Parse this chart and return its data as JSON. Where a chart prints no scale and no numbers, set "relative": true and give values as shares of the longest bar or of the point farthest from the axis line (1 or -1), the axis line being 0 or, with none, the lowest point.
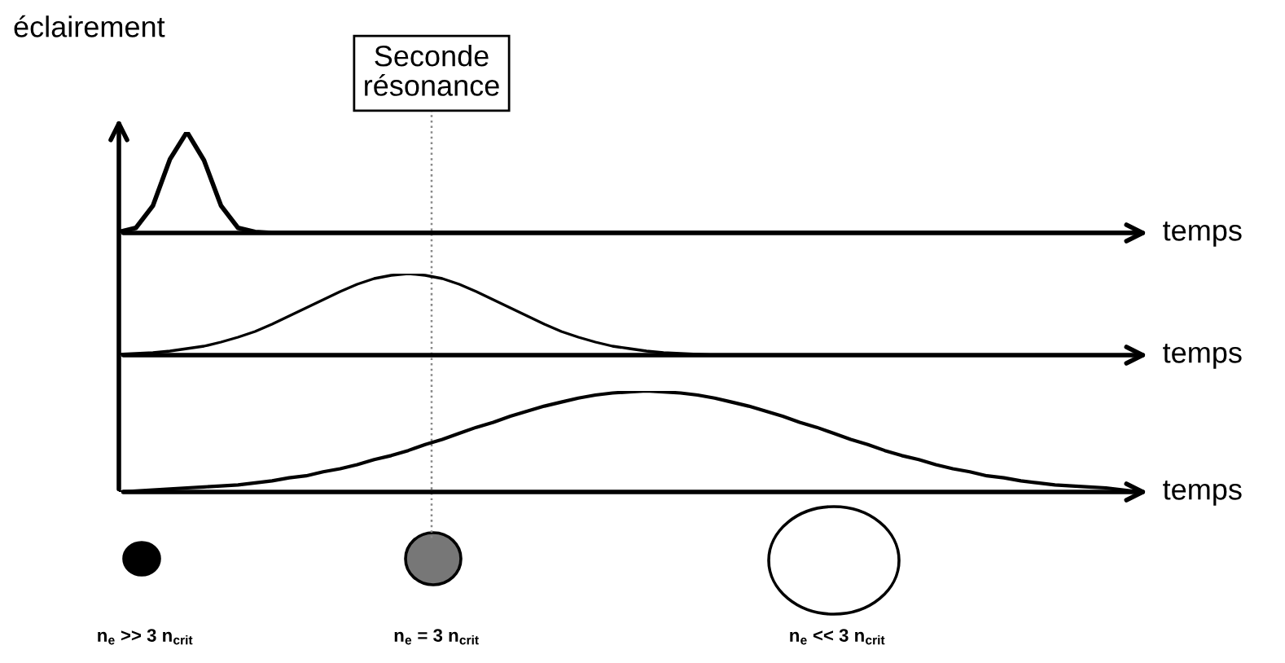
{
  "chart_data": [
    {
      "type": "line",
      "relative": true,
      "ylabel": "éclairement",
      "xlabel": "temps",
      "legend": false,
      "marker": "none",
      "line_style": "solid",
      "annotations": [
        "Seconde résonance"
      ],
      "categories": [
        null,
        null,
        null,
        null,
        null,
        null,
        null,
        null,
        null,
        null,
        null,
        null,
        null,
        null,
        null,
        null,
        null,
        null,
        null,
        null,
        null,
        null,
        null,
        null,
        null,
        null,
        null,
        null,
        null,
        null,
        null,
        null,
        null,
        null,
        null,
        null,
        null,
        null,
        null,
        null,
        null,
        null,
        null,
        null,
        null,
        null,
        null,
        null,
        null,
        null,
        null,
        null,
        null,
        null,
        null,
        null,
        null,
        null,
        null,
        null,
        null
      ],
      "series": [
        {
          "color": "#000000",
          "values": [
            0.01,
            0.05,
            0.27,
            0.73,
            1,
            0.72,
            0.27,
            0.05,
            0.01,
            0,
            0,
            0,
            0,
            0,
            0,
            0,
            0,
            0,
            0,
            0,
            0,
            0,
            0,
            0,
            0,
            0,
            0,
            0,
            0,
            0,
            0,
            0,
            0,
            0,
            0,
            0,
            0,
            0,
            0,
            0,
            0,
            0,
            0,
            0,
            0,
            0,
            0,
            0,
            0,
            0,
            0,
            0,
            0,
            0,
            0,
            0,
            0,
            0,
            0,
            0,
            0
          ]
        }
      ]
    },
    {
      "type": "line",
      "relative": true,
      "xlabel": "temps",
      "legend": false,
      "marker": "none",
      "line_style": "solid",
      "categories": [
        null,
        null,
        null,
        null,
        null,
        null,
        null,
        null,
        null,
        null,
        null,
        null,
        null,
        null,
        null,
        null,
        null,
        null,
        null,
        null,
        null,
        null,
        null,
        null,
        null,
        null,
        null,
        null,
        null,
        null,
        null,
        null,
        null,
        null,
        null,
        null,
        null,
        null,
        null,
        null,
        null,
        null,
        null,
        null,
        null,
        null,
        null,
        null,
        null,
        null,
        null,
        null,
        null,
        null,
        null,
        null,
        null,
        null,
        null,
        null,
        null
      ],
      "series": [
        {
          "color": "#000000",
          "values": [
            0.01,
            0.02,
            0.03,
            0.05,
            0.08,
            0.11,
            0.16,
            0.22,
            0.29,
            0.38,
            0.48,
            0.58,
            0.68,
            0.78,
            0.87,
            0.94,
            0.98,
            1,
            0.98,
            0.94,
            0.87,
            0.78,
            0.68,
            0.58,
            0.48,
            0.38,
            0.29,
            0.22,
            0.16,
            0.11,
            0.08,
            0.05,
            0.03,
            0.02,
            0.01,
            0,
            0,
            0,
            0,
            0,
            0,
            0,
            0,
            0,
            0,
            0,
            0,
            0,
            0,
            0,
            0,
            0,
            0,
            0,
            0,
            0,
            0,
            0,
            0,
            0,
            0
          ]
        }
      ]
    },
    {
      "type": "line",
      "relative": true,
      "xlabel": "temps",
      "legend": false,
      "marker": "none",
      "line_style": "solid",
      "annotations": [
        "n$_{e}$ >> 3 n$_{crit}$",
        "n$_{e}$ = 3 n$_{crit}$",
        "n$_{e}$ << 3 n$_{crit}$"
      ],
      "categories": [
        null,
        null,
        null,
        null,
        null,
        null,
        null,
        null,
        null,
        null,
        null,
        null,
        null,
        null,
        null,
        null,
        null,
        null,
        null,
        null,
        null,
        null,
        null,
        null,
        null,
        null,
        null,
        null,
        null,
        null,
        null,
        null,
        null,
        null,
        null,
        null,
        null,
        null,
        null,
        null,
        null,
        null,
        null,
        null,
        null,
        null,
        null,
        null,
        null,
        null,
        null,
        null,
        null,
        null,
        null,
        null,
        null,
        null,
        null,
        null,
        null
      ],
      "series": [
        {
          "color": "#000000",
          "values": [
            0,
            0.01,
            0.02,
            0.03,
            0.04,
            0.05,
            0.06,
            0.07,
            0.09,
            0.11,
            0.14,
            0.16,
            0.2,
            0.23,
            0.27,
            0.32,
            0.36,
            0.41,
            0.47,
            0.52,
            0.58,
            0.64,
            0.69,
            0.75,
            0.8,
            0.85,
            0.89,
            0.93,
            0.96,
            0.98,
            0.99,
            1,
            0.99,
            0.98,
            0.96,
            0.93,
            0.89,
            0.85,
            0.8,
            0.75,
            0.69,
            0.64,
            0.58,
            0.52,
            0.47,
            0.41,
            0.36,
            0.32,
            0.27,
            0.23,
            0.2,
            0.16,
            0.14,
            0.11,
            0.09,
            0.07,
            0.06,
            0.05,
            0.04,
            0.02,
            0
          ]
        }
      ]
    }
  ]
}
